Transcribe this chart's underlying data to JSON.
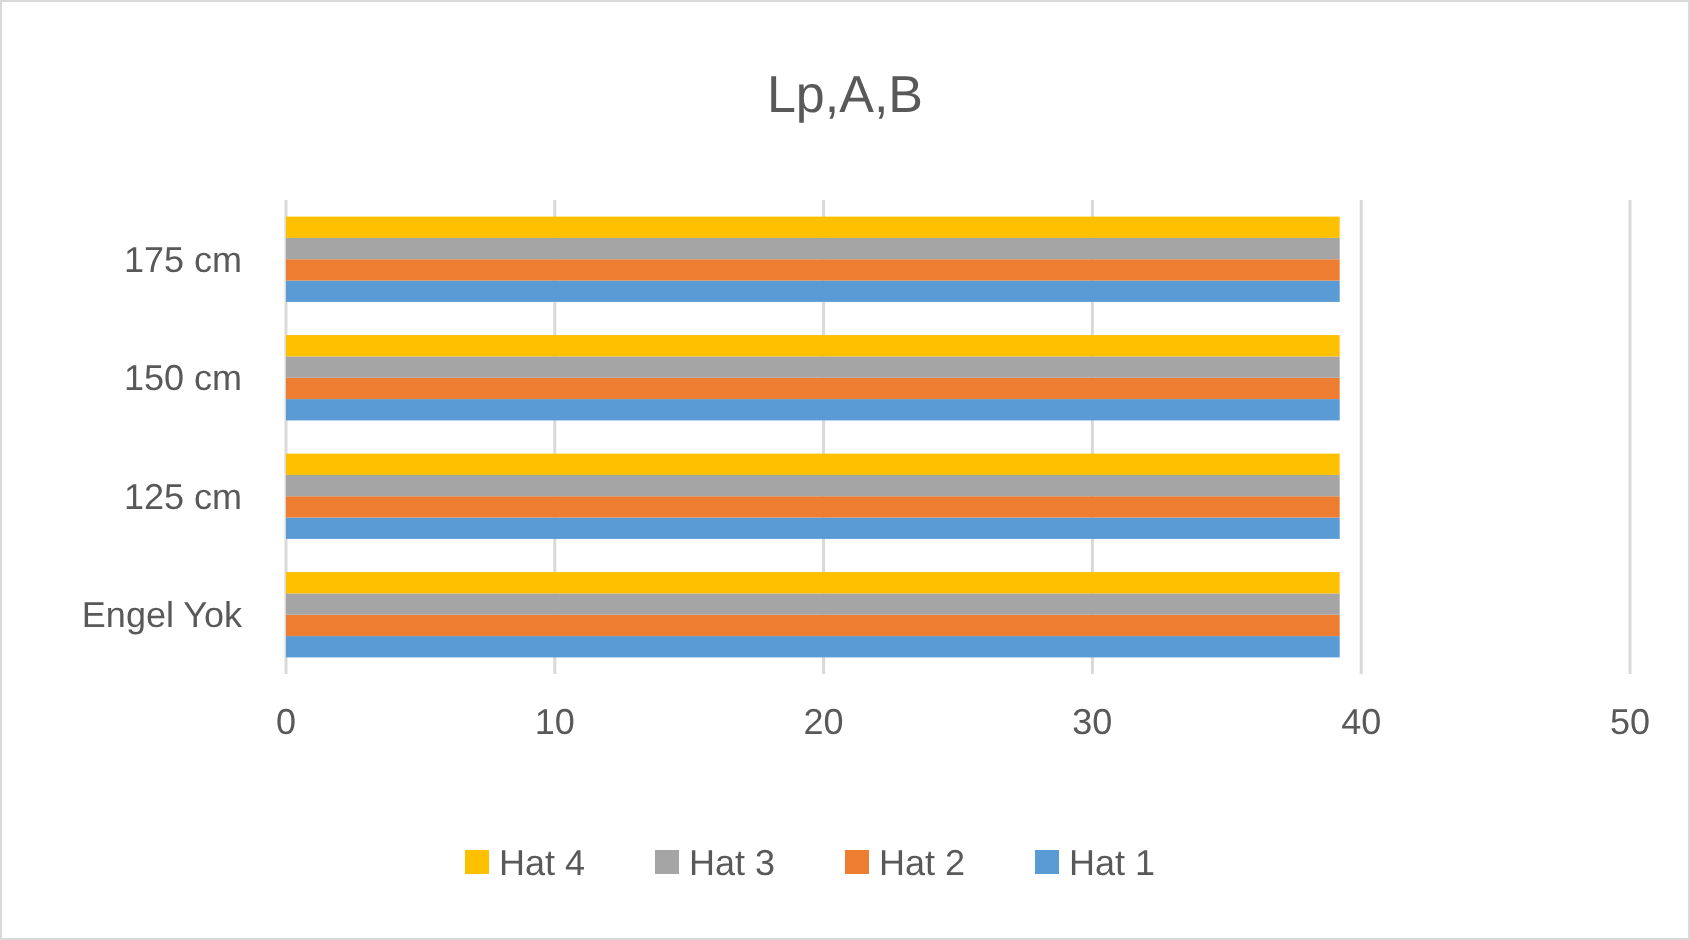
{
  "chart_data": {
    "type": "bar",
    "orientation": "horizontal",
    "title": "Lp,A,B",
    "categories": [
      "175 cm",
      "150 cm",
      "125 cm",
      "Engel Yok"
    ],
    "series": [
      {
        "name": "Hat 1",
        "color": "#5b9bd5",
        "values": [
          39.2,
          39.2,
          39.2,
          39.2
        ]
      },
      {
        "name": "Hat 2",
        "color": "#ed7d31",
        "values": [
          39.2,
          39.2,
          39.2,
          39.2
        ]
      },
      {
        "name": "Hat 3",
        "color": "#a5a5a5",
        "values": [
          39.2,
          39.2,
          39.2,
          39.2
        ]
      },
      {
        "name": "Hat 4",
        "color": "#ffc000",
        "values": [
          39.2,
          39.2,
          39.2,
          39.2
        ]
      }
    ],
    "xlim": [
      0,
      50
    ],
    "xticks": [
      0,
      10,
      20,
      30,
      40,
      50
    ],
    "grid": "x",
    "legend": "bottom"
  }
}
